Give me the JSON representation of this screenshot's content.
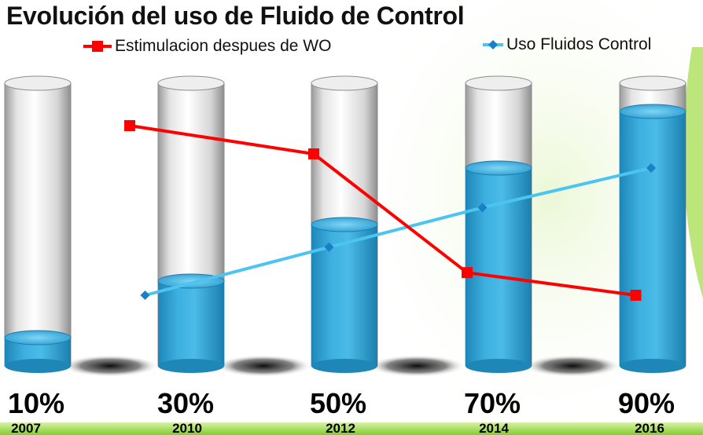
{
  "chart_data": {
    "type": "bar",
    "title": "Evolución del uso de Fluido de Control",
    "categories": [
      "2007",
      "2010",
      "2012",
      "2014",
      "2016"
    ],
    "bar_labels": [
      "10%",
      "30%",
      "50%",
      "70%",
      "90%"
    ],
    "values": [
      10,
      30,
      50,
      70,
      90
    ],
    "ylim": [
      0,
      100
    ],
    "legend_position": "top",
    "series": [
      {
        "name": "Estimulacion despues de WO",
        "type": "line",
        "marker": "square",
        "color": "#ff0000",
        "values": [
          85,
          75,
          33,
          null,
          25
        ]
      },
      {
        "name": "Uso Fluidos Control",
        "type": "line",
        "marker": "diamond",
        "color": "#4cc4f2",
        "values": [
          25,
          42,
          56,
          null,
          70
        ]
      }
    ],
    "line_points": {
      "red": [
        [
          0.6,
          85
        ],
        [
          1.8,
          75
        ],
        [
          2.8,
          33
        ],
        [
          3.9,
          25
        ]
      ],
      "blue": [
        [
          0.7,
          25
        ],
        [
          1.9,
          42
        ],
        [
          2.9,
          56
        ],
        [
          4.0,
          70
        ]
      ]
    },
    "colors": {
      "fill": "#3aa7d8",
      "glass": "#c8c8c8",
      "red": "#ff0000",
      "blue": "#4cc4f2",
      "accent_leaf": "#9fdc3c"
    }
  }
}
